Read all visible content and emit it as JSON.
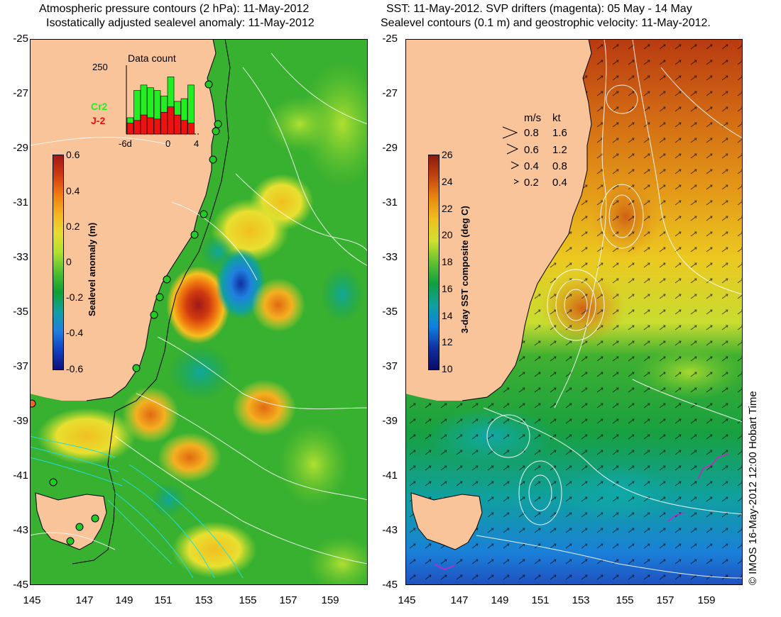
{
  "left_panel": {
    "title_line1": "Atmospheric pressure contours (2 hPa): 11-May-2012",
    "title_line2": "Isostatically adjusted sealevel anomaly: 11-May-2012",
    "y_ticks": [
      "-25",
      "-27",
      "-29",
      "-31",
      "-33",
      "-35",
      "-37",
      "-39",
      "-41",
      "-43",
      "-45"
    ],
    "x_ticks": [
      "145",
      "147",
      "149",
      "151",
      "153",
      "155",
      "157",
      "159"
    ],
    "colorbar": {
      "label": "Sealevel anomaly (m)",
      "ticks": [
        "0.6",
        "0.4",
        "0.2",
        "0",
        "-0.2",
        "-0.4",
        "-0.6"
      ],
      "colors": [
        "#a01818",
        "#d03a10",
        "#f07a10",
        "#f4b320",
        "#e8dc30",
        "#b0e030",
        "#50c030",
        "#10a030",
        "#10a0a0",
        "#2080e0",
        "#1040c0",
        "#10107a"
      ]
    },
    "inset": {
      "title": "Data count",
      "y_max_label": "250",
      "x_labels": [
        "-6d",
        "0",
        "4"
      ],
      "legend": [
        {
          "name": "Cr2",
          "color": "#22ee22"
        },
        {
          "name": "J-2",
          "color": "#ee1111"
        }
      ],
      "bars_green": [
        60,
        160,
        180,
        170,
        160,
        140,
        210,
        120,
        130,
        180
      ],
      "bars_red": [
        40,
        50,
        70,
        60,
        55,
        80,
        100,
        70,
        50,
        40
      ]
    }
  },
  "right_panel": {
    "title_line1": "SST: 11-May-2012. SVP drifters (magenta): 05 May - 14 May",
    "title_line2": "Sealevel contours (0.1 m) and geostrophic velocity: 11-May-2012.",
    "y_ticks": [
      "-25",
      "-27",
      "-29",
      "-31",
      "-33",
      "-35",
      "-37",
      "-39",
      "-41",
      "-43",
      "-45"
    ],
    "x_ticks": [
      "145",
      "147",
      "149",
      "151",
      "153",
      "155",
      "157",
      "159"
    ],
    "colorbar": {
      "label": "3-day SST composite (deg C)",
      "ticks": [
        "26",
        "24",
        "22",
        "20",
        "18",
        "16",
        "14",
        "12",
        "10"
      ],
      "colors": [
        "#8a1a10",
        "#c44410",
        "#e88a10",
        "#f0c020",
        "#d0e030",
        "#60c030",
        "#10a040",
        "#10a0a0",
        "#1080e0",
        "#1030a0",
        "#0a0a6a"
      ]
    },
    "velocity_legend": {
      "header_ms": "m/s",
      "header_kt": "kt",
      "rows": [
        {
          "ms": "0.8",
          "kt": "1.6"
        },
        {
          "ms": "0.6",
          "kt": "1.2"
        },
        {
          "ms": "0.4",
          "kt": "0.8"
        },
        {
          "ms": "0.2",
          "kt": "0.4"
        }
      ]
    }
  },
  "credit": "© IMOS 16-May-2012 12:00 Hobart Time",
  "colors": {
    "land": "#f9c49a",
    "coast": "#000000",
    "contour": "#ffffff"
  }
}
